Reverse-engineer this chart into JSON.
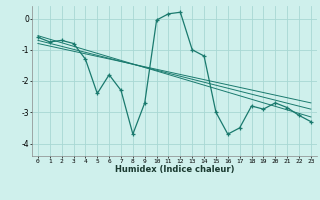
{
  "xlabel": "Humidex (Indice chaleur)",
  "bg_color": "#cff0ec",
  "grid_color": "#a8d8d4",
  "line_color": "#1a7a6e",
  "x_data": [
    0,
    1,
    2,
    3,
    4,
    5,
    6,
    7,
    8,
    9,
    10,
    11,
    12,
    13,
    14,
    15,
    16,
    17,
    18,
    19,
    20,
    21,
    22,
    23
  ],
  "y_data": [
    -0.6,
    -0.75,
    -0.7,
    -0.8,
    -1.3,
    -2.4,
    -1.8,
    -2.3,
    -3.7,
    -2.7,
    -0.05,
    0.15,
    0.2,
    -1.0,
    -1.2,
    -3.0,
    -3.7,
    -3.5,
    -2.8,
    -2.9,
    -2.7,
    -2.85,
    -3.1,
    -3.3
  ],
  "trend1_x": [
    0,
    23
  ],
  "trend1_y": [
    -0.55,
    -3.15
  ],
  "trend2_x": [
    0,
    23
  ],
  "trend2_y": [
    -0.7,
    -2.9
  ],
  "trend3_x": [
    0,
    23
  ],
  "trend3_y": [
    -0.8,
    -2.7
  ],
  "ylim": [
    -4.4,
    0.4
  ],
  "xlim": [
    -0.5,
    23.5
  ],
  "yticks": [
    0,
    -1,
    -2,
    -3,
    -4
  ],
  "xticks": [
    0,
    1,
    2,
    3,
    4,
    5,
    6,
    7,
    8,
    9,
    10,
    11,
    12,
    13,
    14,
    15,
    16,
    17,
    18,
    19,
    20,
    21,
    22,
    23
  ]
}
